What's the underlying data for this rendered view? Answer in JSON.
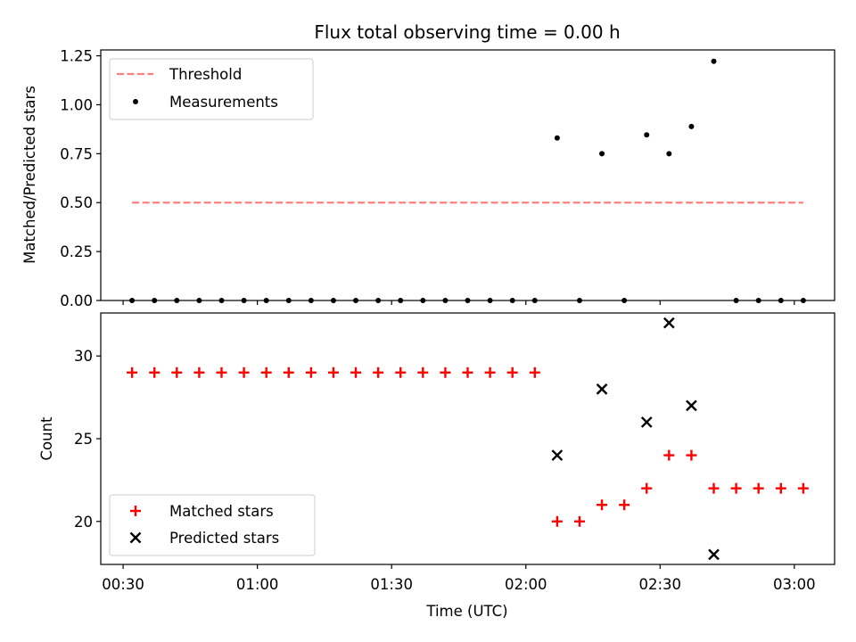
{
  "chart_data": [
    {
      "type": "scatter",
      "title": "Flux total observing time = 0.00 h",
      "ylabel": "Matched/Predicted stars",
      "ylim": [
        0,
        1.28
      ],
      "yticks": [
        "0.00",
        "0.25",
        "0.50",
        "0.75",
        "1.00",
        "1.25"
      ],
      "legend": "top-left",
      "series": [
        {
          "name": "Threshold",
          "kind": "dashed-line",
          "color": "#ff7f7f",
          "x": [
            "00:32",
            "03:02"
          ],
          "y": [
            0.5,
            0.5
          ]
        },
        {
          "name": "Measurements",
          "kind": "dot",
          "color": "#000000",
          "x": [
            "00:32",
            "00:37",
            "00:42",
            "00:47",
            "00:52",
            "00:57",
            "01:02",
            "01:07",
            "01:12",
            "01:17",
            "01:22",
            "01:27",
            "01:32",
            "01:37",
            "01:42",
            "01:47",
            "01:52",
            "01:57",
            "02:02",
            "02:07",
            "02:12",
            "02:17",
            "02:22",
            "02:27",
            "02:32",
            "02:37",
            "02:42",
            "02:47",
            "02:52",
            "02:57",
            "03:02"
          ],
          "y": [
            0,
            0,
            0,
            0,
            0,
            0,
            0,
            0,
            0,
            0,
            0,
            0,
            0,
            0,
            0,
            0,
            0,
            0,
            0,
            0.83,
            0,
            0.75,
            0,
            0.846,
            0.75,
            0.889,
            1.222,
            0,
            0,
            0,
            0
          ]
        }
      ]
    },
    {
      "type": "scatter",
      "xlabel": "Time (UTC)",
      "ylabel": "Count",
      "xlim": [
        "00:25",
        "03:09"
      ],
      "ylim": [
        17.4,
        32.6
      ],
      "xticks": [
        "00:30",
        "01:00",
        "01:30",
        "02:00",
        "02:30",
        "03:00"
      ],
      "yticks": [
        "20",
        "25",
        "30"
      ],
      "legend": "bottom-left",
      "series": [
        {
          "name": "Matched stars",
          "kind": "plus",
          "color": "#ff0000",
          "x": [
            "00:32",
            "00:37",
            "00:42",
            "00:47",
            "00:52",
            "00:57",
            "01:02",
            "01:07",
            "01:12",
            "01:17",
            "01:22",
            "01:27",
            "01:32",
            "01:37",
            "01:42",
            "01:47",
            "01:52",
            "01:57",
            "02:02",
            "02:07",
            "02:12",
            "02:17",
            "02:22",
            "02:27",
            "02:32",
            "02:37",
            "02:42",
            "02:47",
            "02:52",
            "02:57",
            "03:02"
          ],
          "y": [
            29,
            29,
            29,
            29,
            29,
            29,
            29,
            29,
            29,
            29,
            29,
            29,
            29,
            29,
            29,
            29,
            29,
            29,
            29,
            20,
            20,
            21,
            21,
            22,
            24,
            24,
            22,
            22,
            22,
            22,
            22
          ]
        },
        {
          "name": "Predicted stars",
          "kind": "x",
          "color": "#000000",
          "x": [
            "02:07",
            "02:17",
            "02:27",
            "02:32",
            "02:37",
            "02:42"
          ],
          "y": [
            24,
            28,
            26,
            32,
            27,
            18
          ]
        }
      ]
    }
  ]
}
